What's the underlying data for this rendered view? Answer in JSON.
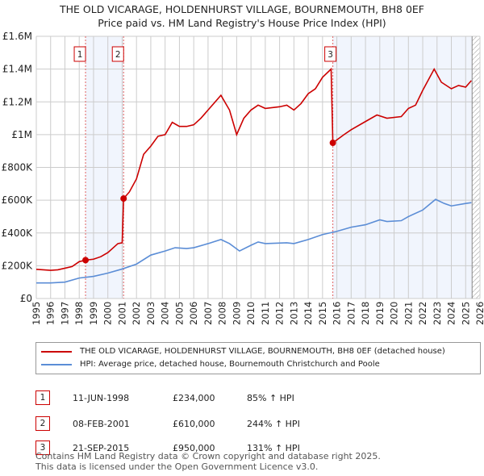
{
  "title": "THE OLD VICARAGE, HOLDENHURST VILLAGE, BOURNEMOUTH, BH8 0EF",
  "subtitle": "Price paid vs. HM Land Registry's House Price Index (HPI)",
  "chart_data": {
    "type": "line",
    "xlim": [
      1995,
      2026
    ],
    "ylim": [
      0,
      1600000
    ],
    "yticks": [
      {
        "v": 0,
        "l": "£0"
      },
      {
        "v": 200000,
        "l": "£200K"
      },
      {
        "v": 400000,
        "l": "£400K"
      },
      {
        "v": 600000,
        "l": "£600K"
      },
      {
        "v": 800000,
        "l": "£800K"
      },
      {
        "v": 1000000,
        "l": "£1M"
      },
      {
        "v": 1200000,
        "l": "£1.2M"
      },
      {
        "v": 1400000,
        "l": "£1.4M"
      },
      {
        "v": 1600000,
        "l": "£1.6M"
      }
    ],
    "xticks": [
      "1995",
      "1996",
      "1997",
      "1998",
      "1999",
      "2000",
      "2001",
      "2002",
      "2003",
      "2004",
      "2005",
      "2006",
      "2007",
      "2008",
      "2009",
      "2010",
      "2011",
      "2012",
      "2013",
      "2014",
      "2015",
      "2016",
      "2017",
      "2018",
      "2019",
      "2020",
      "2021",
      "2022",
      "2023",
      "2024",
      "2025",
      "2026"
    ],
    "series": [
      {
        "name": "THE OLD VICARAGE, HOLDENHURST VILLAGE, BOURNEMOUTH, BH8 0EF (detached house)",
        "color": "#cc0000",
        "points": [
          [
            1995,
            178000
          ],
          [
            1996,
            172000
          ],
          [
            1996.5,
            175000
          ],
          [
            1997,
            185000
          ],
          [
            1997.5,
            195000
          ],
          [
            1998,
            225000
          ],
          [
            1998.44,
            234000
          ],
          [
            1999,
            240000
          ],
          [
            1999.5,
            255000
          ],
          [
            2000,
            280000
          ],
          [
            2000.7,
            335000
          ],
          [
            2001.0,
            340000
          ],
          [
            2001.1,
            610000
          ],
          [
            2001.5,
            650000
          ],
          [
            2002,
            730000
          ],
          [
            2002.5,
            880000
          ],
          [
            2003,
            930000
          ],
          [
            2003.5,
            990000
          ],
          [
            2004,
            1000000
          ],
          [
            2004.5,
            1075000
          ],
          [
            2005,
            1050000
          ],
          [
            2005.5,
            1050000
          ],
          [
            2006,
            1060000
          ],
          [
            2006.5,
            1100000
          ],
          [
            2007,
            1150000
          ],
          [
            2007.9,
            1240000
          ],
          [
            2008.5,
            1150000
          ],
          [
            2009,
            1000000
          ],
          [
            2009.5,
            1100000
          ],
          [
            2010,
            1150000
          ],
          [
            2010.5,
            1180000
          ],
          [
            2011,
            1160000
          ],
          [
            2012,
            1170000
          ],
          [
            2012.5,
            1180000
          ],
          [
            2013,
            1150000
          ],
          [
            2013.5,
            1190000
          ],
          [
            2014,
            1250000
          ],
          [
            2014.5,
            1280000
          ],
          [
            2015,
            1350000
          ],
          [
            2015.6,
            1400000
          ],
          [
            2015.72,
            950000
          ],
          [
            2016.5,
            1000000
          ],
          [
            2017,
            1030000
          ],
          [
            2018,
            1080000
          ],
          [
            2018.8,
            1120000
          ],
          [
            2019.5,
            1100000
          ],
          [
            2020.5,
            1110000
          ],
          [
            2021,
            1160000
          ],
          [
            2021.5,
            1180000
          ],
          [
            2022,
            1270000
          ],
          [
            2022.8,
            1400000
          ],
          [
            2023.3,
            1320000
          ],
          [
            2024,
            1280000
          ],
          [
            2024.5,
            1300000
          ],
          [
            2025,
            1290000
          ],
          [
            2025.4,
            1330000
          ]
        ]
      },
      {
        "name": "HPI: Average price, detached house, Bournemouth Christchurch and Poole",
        "color": "#5b8dd6",
        "points": [
          [
            1995,
            95000
          ],
          [
            1996,
            95000
          ],
          [
            1997,
            100000
          ],
          [
            1998,
            125000
          ],
          [
            1999,
            135000
          ],
          [
            2000,
            155000
          ],
          [
            2001,
            180000
          ],
          [
            2002,
            210000
          ],
          [
            2003,
            265000
          ],
          [
            2004,
            290000
          ],
          [
            2004.7,
            310000
          ],
          [
            2005.5,
            305000
          ],
          [
            2006,
            310000
          ],
          [
            2007,
            335000
          ],
          [
            2007.9,
            360000
          ],
          [
            2008.5,
            335000
          ],
          [
            2009.2,
            290000
          ],
          [
            2010,
            325000
          ],
          [
            2010.5,
            345000
          ],
          [
            2011,
            335000
          ],
          [
            2012.5,
            340000
          ],
          [
            2013,
            335000
          ],
          [
            2014,
            360000
          ],
          [
            2015,
            390000
          ],
          [
            2016,
            410000
          ],
          [
            2017,
            435000
          ],
          [
            2018,
            450000
          ],
          [
            2019,
            480000
          ],
          [
            2019.5,
            470000
          ],
          [
            2020.5,
            475000
          ],
          [
            2021,
            500000
          ],
          [
            2022,
            540000
          ],
          [
            2022.9,
            605000
          ],
          [
            2023.5,
            580000
          ],
          [
            2024,
            565000
          ],
          [
            2025,
            580000
          ],
          [
            2025.4,
            585000
          ]
        ]
      }
    ],
    "sales": [
      {
        "label": "1",
        "x": 1998.44,
        "y": 234000
      },
      {
        "label": "2",
        "x": 2001.1,
        "y": 610000
      },
      {
        "label": "3",
        "x": 2015.72,
        "y": 950000
      }
    ],
    "shaded": [
      [
        1998.44,
        2001.1
      ],
      [
        2015.72,
        2025.45
      ]
    ],
    "hatch_from": 2025.45
  },
  "legend": [
    "THE OLD VICARAGE, HOLDENHURST VILLAGE, BOURNEMOUTH, BH8 0EF (detached house)",
    "HPI: Average price, detached house, Bournemouth Christchurch and Poole"
  ],
  "transactions": [
    {
      "num": "1",
      "date": "11-JUN-1998",
      "price": "£234,000",
      "hpi": "85% ↑ HPI"
    },
    {
      "num": "2",
      "date": "08-FEB-2001",
      "price": "£610,000",
      "hpi": "244% ↑ HPI"
    },
    {
      "num": "3",
      "date": "21-SEP-2015",
      "price": "£950,000",
      "hpi": "131% ↑ HPI"
    }
  ],
  "footer": [
    "Contains HM Land Registry data © Crown copyright and database right 2025.",
    "This data is licensed under the Open Government Licence v3.0."
  ]
}
